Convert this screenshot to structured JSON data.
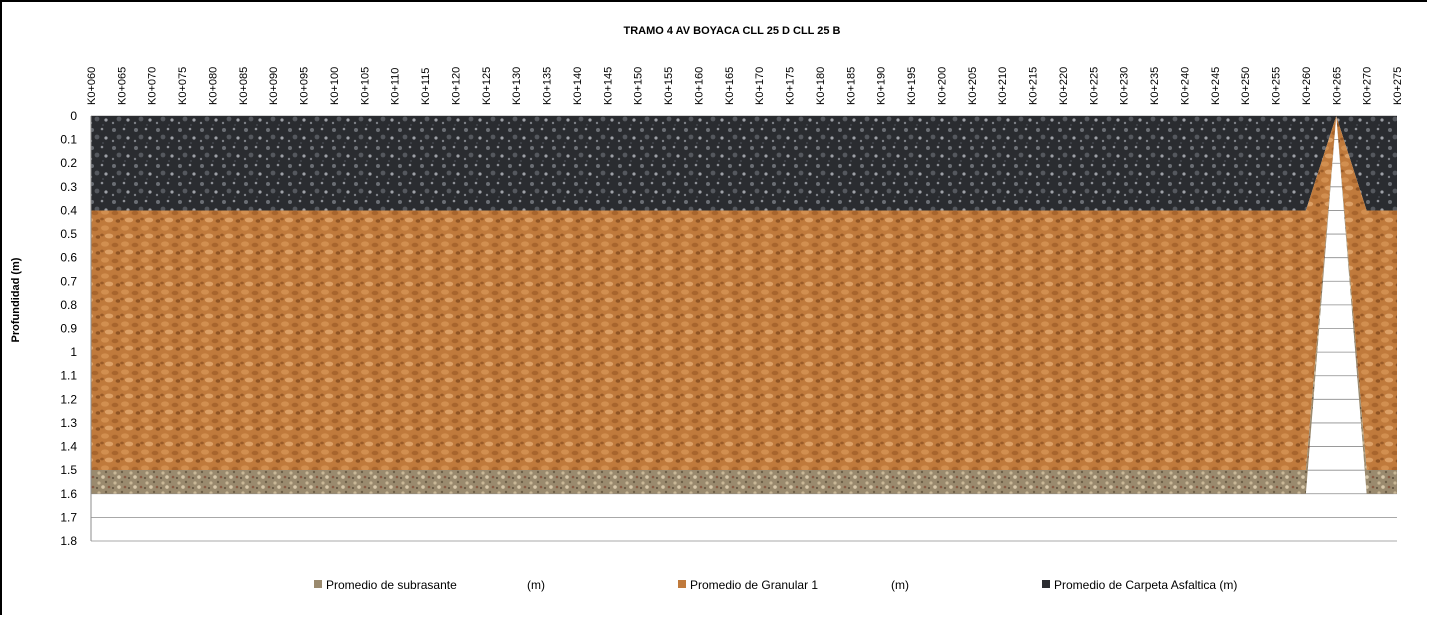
{
  "chart_data": {
    "type": "area",
    "title": "TRAMO 4 AV BOYACA CLL 25 D CLL 25 B",
    "ylabel": "Profundidad (m)",
    "xlabel": "",
    "ylim": [
      0,
      1.8
    ],
    "y_inverted": true,
    "y_ticks": [
      "0",
      "0.1",
      "0.2",
      "0.3",
      "0.4",
      "0.5",
      "0.6",
      "0.7",
      "0.8",
      "0.9",
      "1",
      "1.1",
      "1.2",
      "1.3",
      "1.4",
      "1.5",
      "1.6",
      "1.7",
      "1.8"
    ],
    "grid": true,
    "legend_position": "bottom",
    "categories": [
      "K0+060",
      "K0+065",
      "K0+070",
      "K0+075",
      "K0+080",
      "K0+085",
      "K0+090",
      "K0+095",
      "K0+100",
      "K0+105",
      "K0+110",
      "K0+115",
      "K0+120",
      "K0+125",
      "K0+130",
      "K0+135",
      "K0+140",
      "K0+145",
      "K0+150",
      "K0+155",
      "K0+160",
      "K0+165",
      "K0+170",
      "K0+175",
      "K0+180",
      "K0+185",
      "K0+190",
      "K0+195",
      "K0+200",
      "K0+205",
      "K0+210",
      "K0+215",
      "K0+220",
      "K0+225",
      "K0+230",
      "K0+235",
      "K0+240",
      "K0+245",
      "K0+250",
      "K0+255",
      "K0+260",
      "K0+265",
      "K0+270",
      "K0+275"
    ],
    "series": [
      {
        "name": "Promedio de Carpeta Asfaltica (m)",
        "color": "#2a2c30",
        "values": [
          0.4,
          0.4,
          0.4,
          0.4,
          0.4,
          0.4,
          0.4,
          0.4,
          0.4,
          0.4,
          0.4,
          0.4,
          0.4,
          0.4,
          0.4,
          0.4,
          0.4,
          0.4,
          0.4,
          0.4,
          0.4,
          0.4,
          0.4,
          0.4,
          0.4,
          0.4,
          0.4,
          0.4,
          0.4,
          0.4,
          0.4,
          0.4,
          0.4,
          0.4,
          0.4,
          0.4,
          0.4,
          0.4,
          0.4,
          0.4,
          0.4,
          0,
          0.4,
          0.4
        ]
      },
      {
        "name": "Promedio de Granular 1              (m)",
        "color": "#c07a3c",
        "values": [
          1.1,
          1.1,
          1.1,
          1.1,
          1.1,
          1.1,
          1.1,
          1.1,
          1.1,
          1.1,
          1.1,
          1.1,
          1.1,
          1.1,
          1.1,
          1.1,
          1.1,
          1.1,
          1.1,
          1.1,
          1.1,
          1.1,
          1.1,
          1.1,
          1.1,
          1.1,
          1.1,
          1.1,
          1.1,
          1.1,
          1.1,
          1.1,
          1.1,
          1.1,
          1.1,
          1.1,
          1.1,
          1.1,
          1.1,
          1.1,
          1.1,
          0,
          1.1,
          1.1
        ]
      },
      {
        "name": "Promedio de subrasante              (m)",
        "color": "#9a8a6e",
        "values": [
          0.1,
          0.1,
          0.1,
          0.1,
          0.1,
          0.1,
          0.1,
          0.1,
          0.1,
          0.1,
          0.1,
          0.1,
          0.1,
          0.1,
          0.1,
          0.1,
          0.1,
          0.1,
          0.1,
          0.1,
          0.1,
          0.1,
          0.1,
          0.1,
          0.1,
          0.1,
          0.1,
          0.1,
          0.1,
          0.1,
          0.1,
          0.1,
          0.1,
          0.1,
          0.1,
          0.1,
          0.1,
          0.1,
          0.1,
          0.1,
          0.1,
          0,
          0.1,
          0.1
        ]
      }
    ],
    "legend": [
      {
        "label": "Promedio de subrasante",
        "unit": "(m)",
        "color": "#9a8a6e"
      },
      {
        "label": "Promedio de Granular 1",
        "unit": "(m)",
        "color": "#c07a3c"
      },
      {
        "label": "Promedio de Carpeta Asfaltica (m)",
        "unit": "",
        "color": "#2a2c30"
      }
    ]
  }
}
